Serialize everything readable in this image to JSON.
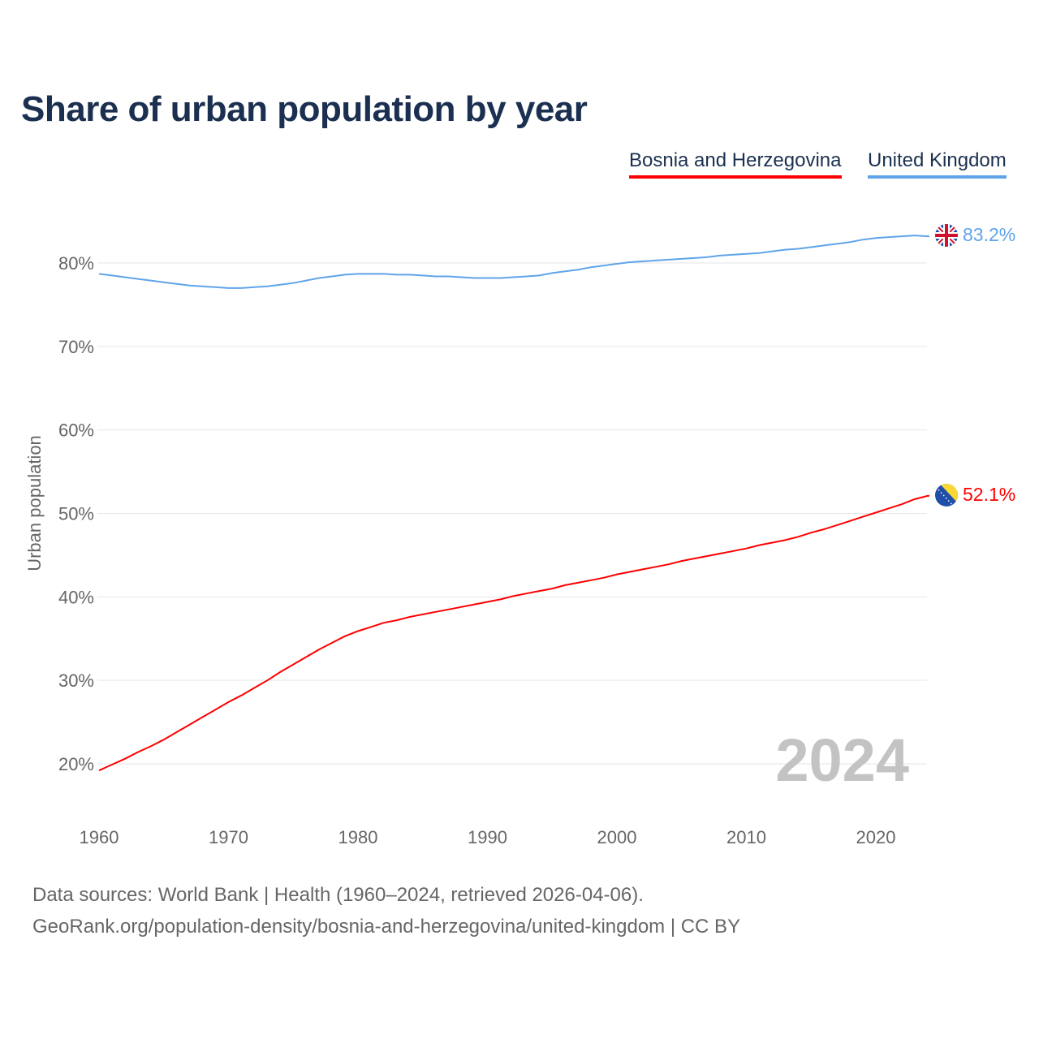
{
  "chart_data": {
    "type": "line",
    "title": "Share of urban population by year",
    "xlabel": "",
    "ylabel": "Urban population",
    "xlim": [
      1960,
      2024
    ],
    "ylim": [
      15,
      85
    ],
    "x_ticks": [
      "1960",
      "1970",
      "1980",
      "1990",
      "2000",
      "2010",
      "2020"
    ],
    "y_ticks": [
      "20%",
      "30%",
      "40%",
      "50%",
      "60%",
      "70%",
      "80%"
    ],
    "y_tick_values": [
      20,
      30,
      40,
      50,
      60,
      70,
      80
    ],
    "grid": true,
    "legend_placement": "top-right",
    "year_watermark": "2024",
    "x_start": 1960,
    "series": [
      {
        "name": "Bosnia and Herzegovina",
        "color": "#ff0000",
        "end_label": "52.1%",
        "flag": "bosnia-flag",
        "values": [
          19.2,
          19.9,
          20.6,
          21.4,
          22.1,
          22.9,
          23.8,
          24.7,
          25.6,
          26.5,
          27.4,
          28.2,
          29.1,
          30.0,
          31.0,
          31.9,
          32.8,
          33.7,
          34.5,
          35.3,
          35.9,
          36.4,
          36.9,
          37.2,
          37.6,
          37.9,
          38.2,
          38.5,
          38.8,
          39.1,
          39.4,
          39.7,
          40.1,
          40.4,
          40.7,
          41.0,
          41.4,
          41.7,
          42.0,
          42.3,
          42.7,
          43.0,
          43.3,
          43.6,
          43.9,
          44.3,
          44.6,
          44.9,
          45.2,
          45.5,
          45.8,
          46.2,
          46.5,
          46.8,
          47.2,
          47.7,
          48.1,
          48.6,
          49.1,
          49.6,
          50.1,
          50.6,
          51.1,
          51.7,
          52.1
        ]
      },
      {
        "name": "United Kingdom",
        "color": "#5fa4ea",
        "end_label": "83.2%",
        "flag": "uk-flag",
        "values": [
          78.7,
          78.5,
          78.3,
          78.1,
          77.9,
          77.7,
          77.5,
          77.3,
          77.2,
          77.1,
          77.0,
          77.0,
          77.1,
          77.2,
          77.4,
          77.6,
          77.9,
          78.2,
          78.4,
          78.6,
          78.7,
          78.7,
          78.7,
          78.6,
          78.6,
          78.5,
          78.4,
          78.4,
          78.3,
          78.2,
          78.2,
          78.2,
          78.3,
          78.4,
          78.5,
          78.8,
          79.0,
          79.2,
          79.5,
          79.7,
          79.9,
          80.1,
          80.2,
          80.3,
          80.4,
          80.5,
          80.6,
          80.7,
          80.9,
          81.0,
          81.1,
          81.2,
          81.4,
          81.6,
          81.7,
          81.9,
          82.1,
          82.3,
          82.5,
          82.8,
          83.0,
          83.1,
          83.2,
          83.3,
          83.2
        ]
      }
    ]
  },
  "footer": {
    "source": "Data sources: World Bank | Health (1960–2024, retrieved 2026-04-06).",
    "link": "GeoRank.org/population-density/bosnia-and-herzegovina/united-kingdom | CC BY"
  }
}
